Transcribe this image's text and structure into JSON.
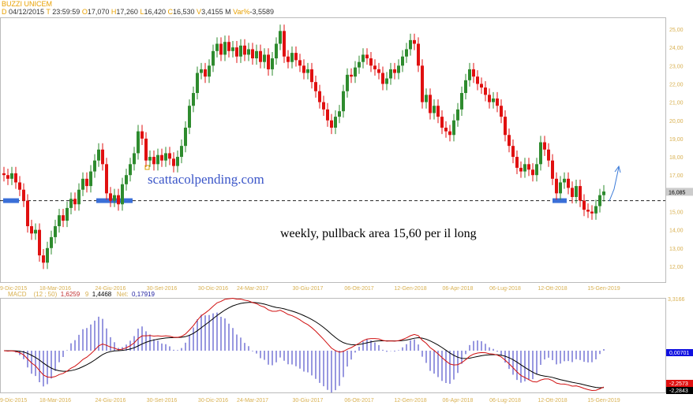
{
  "header": {
    "title": "BUZZI UNICEM",
    "d_label": "D",
    "date": "04/12/2015",
    "t_label": "T",
    "time": "23:59:59",
    "o_label": "O",
    "open": "17,070",
    "h_label": "H",
    "high": "17,260",
    "l_label": "L",
    "low": "16,420",
    "c_label": "C",
    "close": "16,530",
    "v_label": "V",
    "volume": "3,4155 M",
    "var_label": "Var%",
    "var": "-3,5589"
  },
  "annotations": {
    "watermark": "scattacolpending.com",
    "note": "weekly, pullback area 15,60 per il long"
  },
  "chart_data": [
    {
      "type": "candlestick",
      "frequency": "weekly",
      "y_ticks": [
        "25,00",
        "24,00",
        "23,00",
        "22,00",
        "21,00",
        "20,00",
        "19,00",
        "18,00",
        "17,00",
        "15,00",
        "14,00",
        "13,00",
        "12,00"
      ],
      "ylim": [
        11.4,
        25.7
      ],
      "last_price_label": "16,085",
      "support_level": 15.6,
      "x_tick_labels": [
        "9-Dic-2015",
        "18-Mar-2016",
        "24-Giu-2016",
        "30-Set-2016",
        "30-Dic-2016",
        "24-Mar-2017",
        "30-Giu-2017",
        "06-Ott-2017",
        "12-Gen-2018",
        "06-Apr-2018",
        "06-Lug-2018",
        "12-Ott-2018",
        "15-Gen-2019"
      ],
      "closes": [
        17.0,
        16.8,
        17.1,
        16.6,
        16.2,
        15.6,
        14.2,
        13.8,
        14.0,
        12.6,
        12.2,
        13.0,
        13.6,
        14.2,
        14.8,
        14.5,
        15.2,
        15.7,
        15.4,
        16.2,
        16.8,
        16.4,
        17.2,
        17.8,
        18.4,
        17.6,
        16.0,
        15.6,
        15.9,
        15.4,
        16.5,
        17.0,
        17.6,
        18.2,
        19.4,
        19.0,
        17.8,
        18.0,
        17.6,
        18.1,
        17.8,
        18.2,
        17.9,
        17.5,
        18.0,
        18.6,
        19.6,
        20.8,
        21.5,
        22.6,
        22.8,
        22.4,
        23.0,
        23.8,
        24.2,
        23.6,
        24.3,
        23.8,
        24.0,
        23.5,
        24.1,
        23.6,
        23.9,
        23.4,
        23.8,
        23.2,
        23.6,
        22.8,
        23.4,
        24.2,
        24.9,
        23.5,
        23.2,
        23.7,
        23.3,
        23.0,
        22.6,
        22.8,
        22.1,
        21.6,
        21.0,
        20.6,
        20.0,
        19.6,
        20.2,
        20.5,
        21.6,
        22.5,
        22.4,
        22.9,
        23.2,
        23.6,
        23.4,
        23.0,
        22.8,
        22.6,
        22.0,
        22.3,
        22.8,
        22.6,
        23.0,
        23.5,
        23.9,
        24.4,
        24.2,
        23.0,
        21.0,
        21.4,
        20.4,
        20.8,
        20.2,
        19.6,
        19.4,
        19.2,
        20.0,
        20.6,
        21.5,
        22.2,
        22.8,
        22.4,
        22.0,
        21.8,
        21.4,
        21.0,
        21.2,
        20.8,
        20.2,
        19.2,
        18.6,
        18.0,
        17.4,
        17.2,
        17.6,
        17.3,
        17.0,
        17.6,
        18.8,
        18.4,
        17.8,
        16.8,
        16.0,
        16.6,
        16.8,
        16.3,
        15.8,
        16.4,
        15.6,
        15.1,
        15.0,
        14.9,
        15.3,
        15.9,
        16.1
      ],
      "colors": {
        "up": "#2e8b2e",
        "down": "#e01010",
        "level": "#3a6fd8"
      }
    },
    {
      "type": "line",
      "indicator": "MACD",
      "label": "MACD",
      "params": "(12 ; 50)",
      "macd_value": "1,6259",
      "signal_label": "9",
      "signal_value": "1,4468",
      "net_label": "Net:",
      "net_value": "0,17919",
      "top_label": "3,3166",
      "right_labels": {
        "hist": "0,00701",
        "macd": "-2,2573",
        "signal": "-2,2843"
      },
      "ylim": [
        -2.6,
        3.3166
      ],
      "colors": {
        "macd": "#d01010",
        "signal": "#000000",
        "hist": "#3030c0"
      }
    }
  ]
}
